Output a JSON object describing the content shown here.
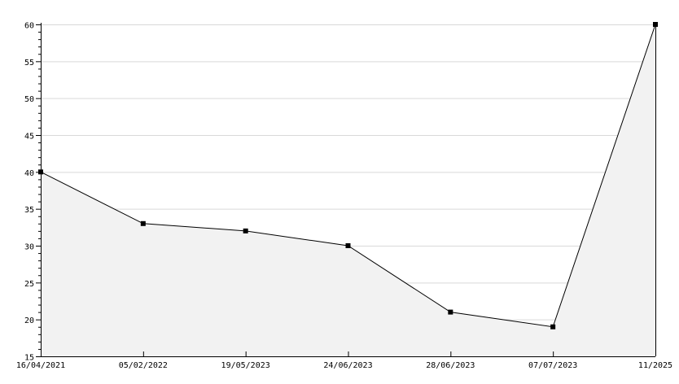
{
  "chart_data": {
    "type": "area",
    "title": "",
    "xlabel": "",
    "ylabel": "",
    "categories": [
      "16/04/2021",
      "05/02/2022",
      "19/05/2023",
      "24/06/2023",
      "28/06/2023",
      "07/07/2023",
      "11/2025"
    ],
    "series": [
      {
        "values": [
          40,
          33,
          32,
          30,
          21,
          19,
          60
        ]
      }
    ],
    "ylim": [
      15,
      60
    ],
    "yticks": [
      15,
      20,
      25,
      30,
      35,
      40,
      45,
      50,
      55,
      60
    ],
    "grid": true,
    "colors": {
      "line": "#000000",
      "fill": "#f2f2f2",
      "grid": "#d9d9d9",
      "marker": "#000000"
    }
  }
}
